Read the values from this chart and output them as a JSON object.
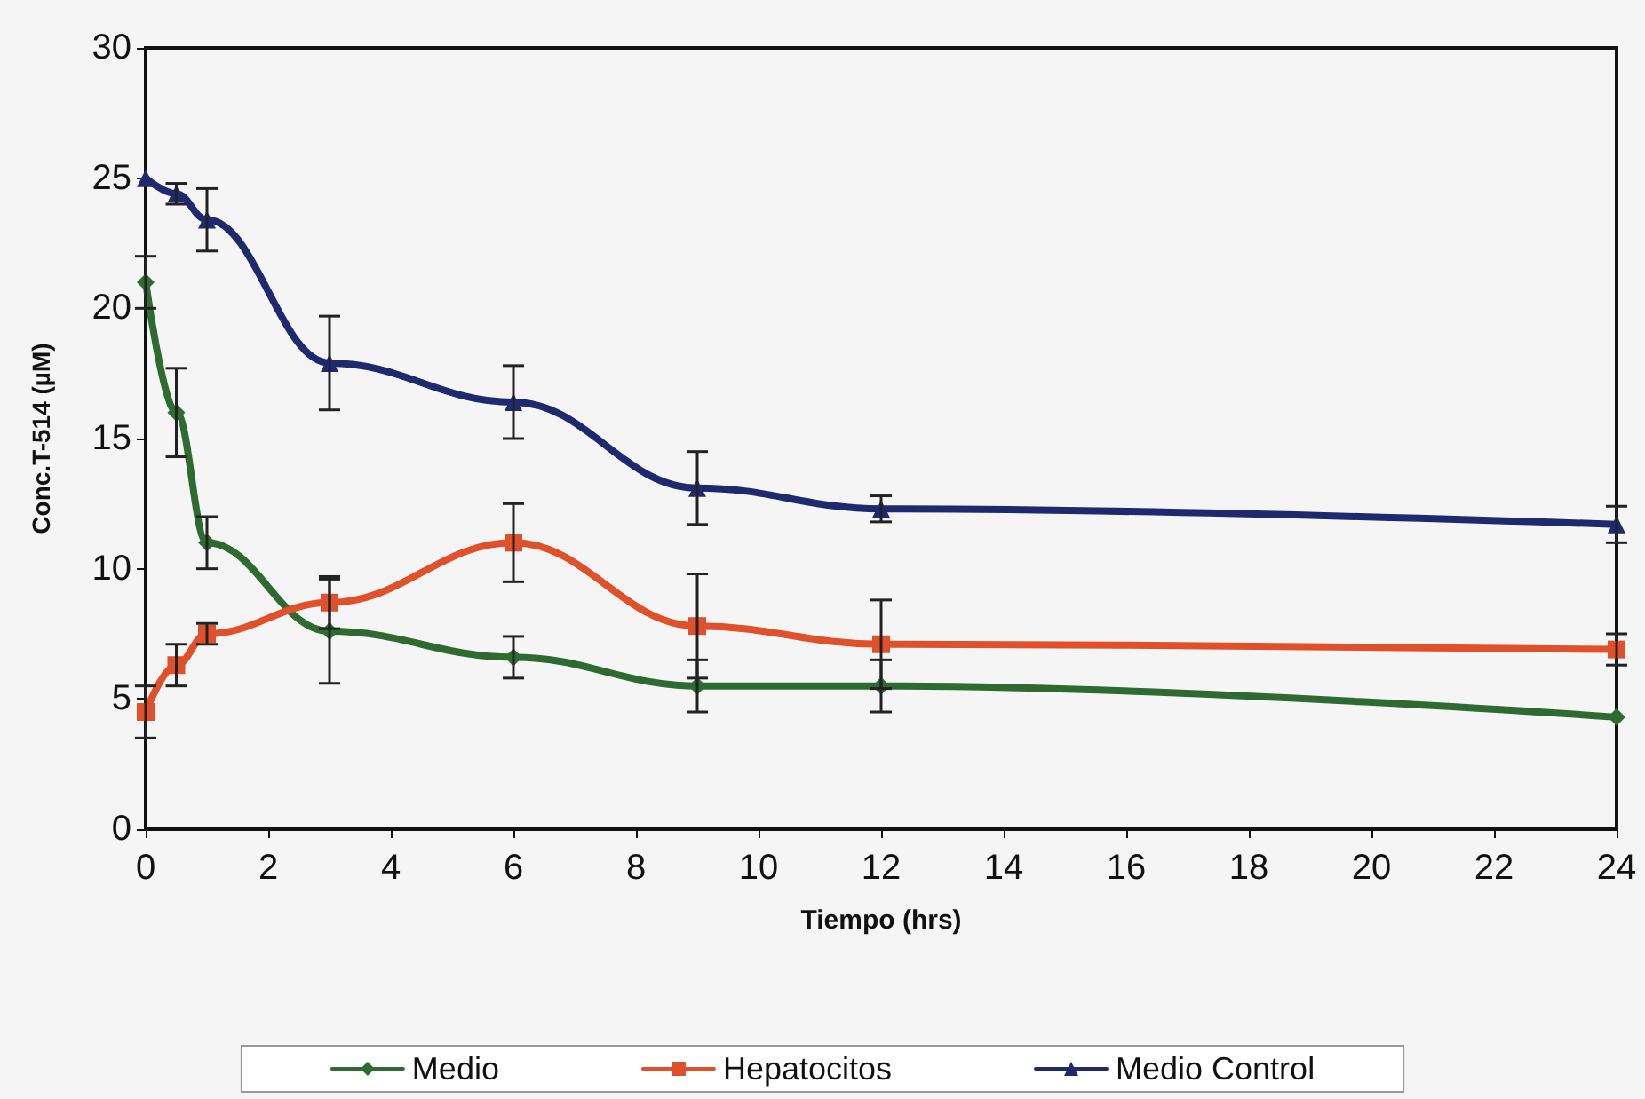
{
  "chart_data": {
    "type": "line",
    "xlabel": "Tiempo (hrs)",
    "ylabel": "Conc.T-514 (µM)",
    "x": [
      0,
      0.5,
      1,
      3,
      6,
      9,
      12,
      24
    ],
    "series": [
      {
        "name": "Medio",
        "color": "#2e6b30",
        "marker": "diamond",
        "values": [
          21,
          16,
          11,
          7.6,
          6.6,
          5.5,
          5.5,
          4.3
        ],
        "errors": [
          1,
          1.7,
          1,
          2,
          0.8,
          1,
          1,
          null
        ]
      },
      {
        "name": "Hepatocitos",
        "color": "#e0502a",
        "marker": "square",
        "values": [
          4.5,
          6.3,
          7.5,
          8.7,
          11,
          7.8,
          7.1,
          6.9
        ],
        "errors": [
          1,
          0.8,
          0.4,
          1,
          1.5,
          2,
          1.7,
          0.6
        ]
      },
      {
        "name": "Medio Control",
        "color": "#1f2a6e",
        "marker": "triangle",
        "values": [
          25,
          24.4,
          23.4,
          17.9,
          16.4,
          13.1,
          12.3,
          11.7
        ],
        "errors": [
          null,
          0.4,
          1.2,
          1.8,
          1.4,
          1.4,
          0.5,
          0.7
        ]
      }
    ],
    "xlim": [
      0,
      24
    ],
    "xticks": [
      0,
      2,
      4,
      6,
      8,
      10,
      12,
      14,
      16,
      18,
      20,
      22,
      24
    ],
    "ylim": [
      0,
      30
    ],
    "yticks": [
      0,
      5,
      10,
      15,
      20,
      25,
      30
    ],
    "grid": false,
    "legend": "bottom",
    "line_style": "solid"
  }
}
